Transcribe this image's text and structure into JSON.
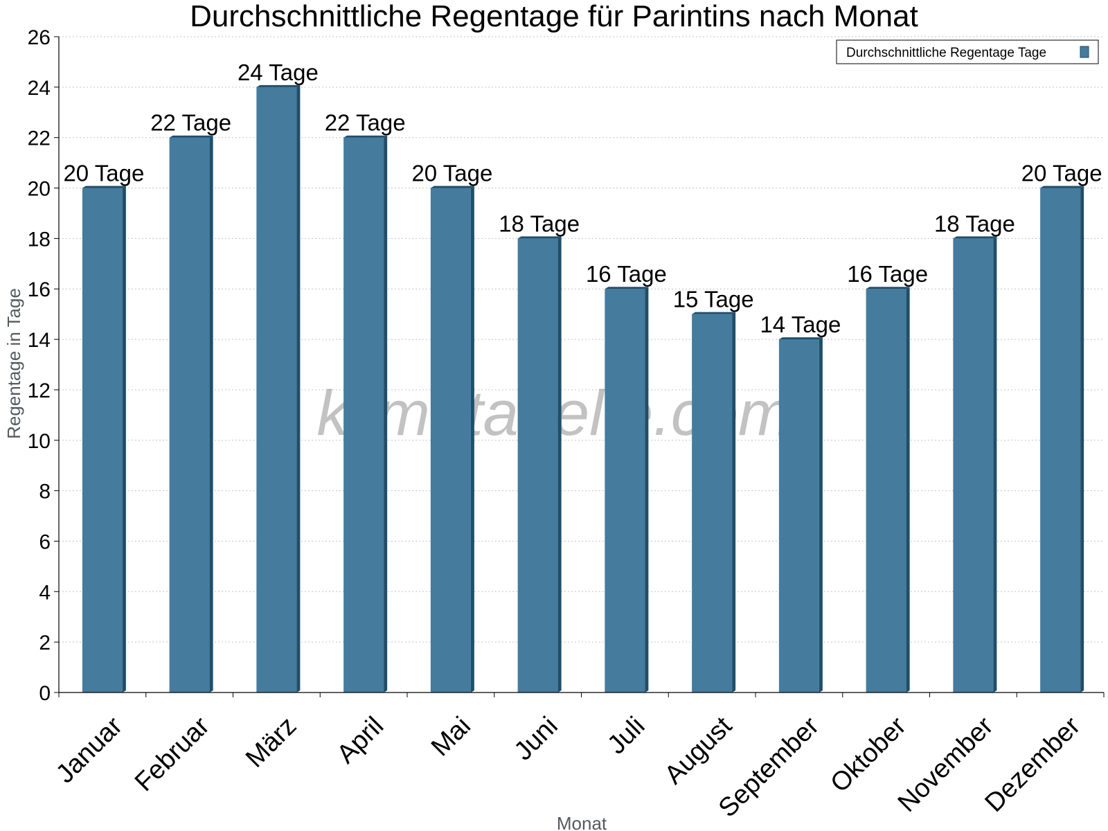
{
  "chart_data": {
    "type": "bar",
    "title": "Durchschnittliche Regentage für Parintins nach Monat",
    "xlabel": "Monat",
    "ylabel": "Regentage in Tage",
    "ylim": [
      0,
      26
    ],
    "yticks": [
      0,
      2,
      4,
      6,
      8,
      10,
      12,
      14,
      16,
      18,
      20,
      22,
      24,
      26
    ],
    "grid": true,
    "legend_position": "top-right",
    "categories": [
      "Januar",
      "Februar",
      "März",
      "April",
      "Mai",
      "Juni",
      "Juli",
      "August",
      "September",
      "Oktober",
      "November",
      "Dezember"
    ],
    "series": [
      {
        "name": "Durchschnittliche Regentage Tage",
        "color": "#457b9d",
        "values": [
          20,
          22,
          24,
          22,
          20,
          18,
          16,
          15,
          14,
          16,
          18,
          20
        ],
        "data_labels": [
          "20 Tage",
          "22 Tage",
          "24 Tage",
          "22 Tage",
          "20 Tage",
          "18 Tage",
          "16 Tage",
          "15 Tage",
          "14 Tage",
          "16 Tage",
          "18 Tage",
          "20 Tage"
        ]
      }
    ]
  },
  "watermark": "klimatabelle.com"
}
